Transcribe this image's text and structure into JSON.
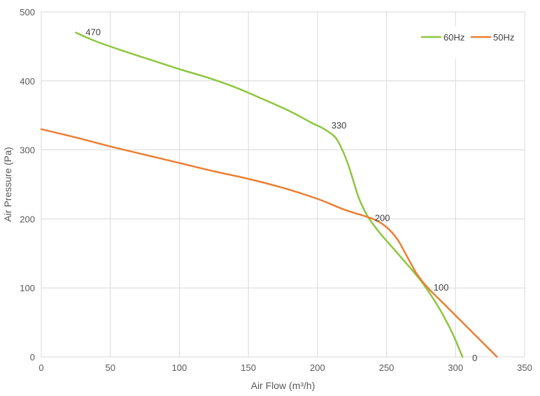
{
  "chart_data": {
    "type": "line",
    "title": "",
    "xlabel": "Air Flow  (m³/h)",
    "ylabel": "Air Pressure  (Pa)",
    "xlim": [
      0,
      350
    ],
    "ylim": [
      0,
      500
    ],
    "x_ticks": [
      "0",
      "50",
      "100",
      "150",
      "200",
      "250",
      "300",
      "350"
    ],
    "y_ticks": [
      "0",
      "100",
      "200",
      "300",
      "400",
      "500"
    ],
    "grid": true,
    "legend_position": "top-right",
    "series": [
      {
        "name": "60Hz",
        "color": "#8dc63f",
        "points": [
          [
            25,
            470
          ],
          [
            40,
            457
          ],
          [
            60,
            443
          ],
          [
            80,
            430
          ],
          [
            100,
            417
          ],
          [
            120,
            405
          ],
          [
            140,
            391
          ],
          [
            160,
            374
          ],
          [
            180,
            356
          ],
          [
            195,
            340
          ],
          [
            205,
            330
          ],
          [
            213,
            318
          ],
          [
            218,
            300
          ],
          [
            222,
            280
          ],
          [
            226,
            255
          ],
          [
            230,
            230
          ],
          [
            236,
            205
          ],
          [
            245,
            180
          ],
          [
            255,
            157
          ],
          [
            265,
            134
          ],
          [
            275,
            110
          ],
          [
            282,
            90
          ],
          [
            290,
            64
          ],
          [
            298,
            33
          ],
          [
            305,
            0
          ]
        ],
        "labels": [
          {
            "x": 25,
            "y": 470,
            "text": "470"
          },
          {
            "x": 205,
            "y": 330,
            "text": "330"
          },
          {
            "x": 280,
            "y": 100,
            "text": "100"
          }
        ]
      },
      {
        "name": "50Hz",
        "color": "#ed7d31",
        "points": [
          [
            0,
            330
          ],
          [
            25,
            318
          ],
          [
            50,
            305
          ],
          [
            75,
            293
          ],
          [
            100,
            281
          ],
          [
            125,
            269
          ],
          [
            150,
            258
          ],
          [
            175,
            245
          ],
          [
            200,
            229
          ],
          [
            220,
            213
          ],
          [
            240,
            200
          ],
          [
            250,
            188
          ],
          [
            258,
            170
          ],
          [
            265,
            145
          ],
          [
            272,
            120
          ],
          [
            280,
            100
          ],
          [
            290,
            80
          ],
          [
            300,
            60
          ],
          [
            310,
            40
          ],
          [
            320,
            20
          ],
          [
            330,
            0
          ]
        ],
        "labels": [
          {
            "x": 240,
            "y": 200,
            "text": "200"
          },
          {
            "x": 305,
            "y": 0,
            "text": "0"
          }
        ]
      }
    ]
  }
}
